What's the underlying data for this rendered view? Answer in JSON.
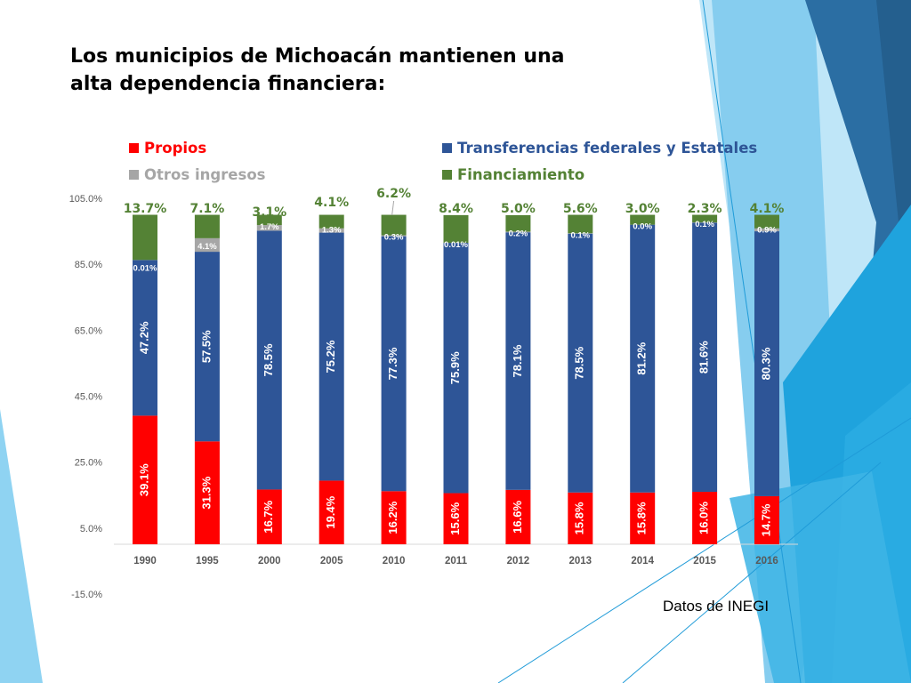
{
  "slide": {
    "title_lines": [
      "Los municipios de Michoacán mantienen una",
      "alta dependencia financiera:"
    ],
    "source": "Datos de INEGI"
  },
  "colors": {
    "propios": "#ff0000",
    "transferencias": "#2e5597",
    "otros": "#a6a6a6",
    "financiamiento": "#548235",
    "axis_text": "#595959",
    "accent_blue": "#1f9bd8",
    "accent_dark": "#2a6fa5",
    "accent_light": "#6cc5ee"
  },
  "chart_data": {
    "type": "bar",
    "stacked": true,
    "categories": [
      "1990",
      "1995",
      "2000",
      "2005",
      "2010",
      "2011",
      "2012",
      "2013",
      "2014",
      "2015",
      "2016"
    ],
    "ylim": [
      -15,
      105
    ],
    "yticks": [
      "105.0%",
      "85.0%",
      "65.0%",
      "45.0%",
      "25.0%",
      "5.0%",
      "-15.0%"
    ],
    "ytick_values": [
      105,
      85,
      65,
      45,
      25,
      5,
      -15
    ],
    "legend": [
      "Propios",
      "Transferencias federales y Estatales",
      "Otros ingresos",
      "Financiamiento"
    ],
    "legend_position": "top",
    "series": [
      {
        "name": "Propios",
        "values": [
          39.1,
          31.3,
          16.7,
          19.4,
          16.2,
          15.6,
          16.6,
          15.8,
          15.8,
          16.0,
          14.7
        ],
        "labels": [
          "39.1%",
          "31.3%",
          "16.7%",
          "19.4%",
          "16.2%",
          "15.6%",
          "16.6%",
          "15.8%",
          "15.8%",
          "16.0%",
          "14.7%"
        ]
      },
      {
        "name": "Transferencias federales y Estatales",
        "values": [
          47.2,
          57.5,
          78.5,
          75.2,
          77.3,
          75.9,
          78.1,
          78.5,
          81.2,
          81.6,
          80.3
        ],
        "labels": [
          "47.2%",
          "57.5%",
          "78.5%",
          "75.2%",
          "77.3%",
          "75.9%",
          "78.1%",
          "78.5%",
          "81.2%",
          "81.6%",
          "80.3%"
        ]
      },
      {
        "name": "Otros ingresos",
        "values": [
          0.01,
          4.1,
          1.7,
          1.3,
          0.3,
          0.01,
          0.2,
          0.1,
          0.0,
          0.1,
          0.9
        ],
        "labels": [
          "0.01%",
          "4.1%",
          "1.7%",
          "1.3%",
          "0.3%",
          "0.01%",
          "0.2%",
          "0.1%",
          "0.0%",
          "0.1%",
          "0.9%"
        ]
      },
      {
        "name": "Financiamiento",
        "values": [
          13.7,
          7.1,
          3.1,
          4.1,
          6.2,
          8.4,
          5.0,
          5.6,
          3.0,
          2.3,
          4.1
        ],
        "labels": [
          "13.7%",
          "7.1%",
          "3.1%",
          "4.1%",
          "6.2%",
          "8.4%",
          "5.0%",
          "5.6%",
          "3.0%",
          "2.3%",
          "4.1%"
        ]
      }
    ]
  }
}
